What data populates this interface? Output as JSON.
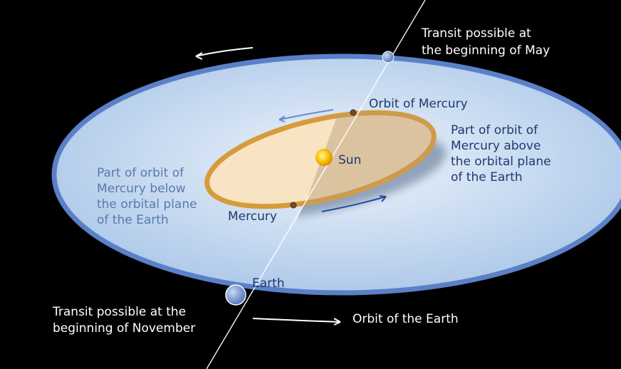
{
  "labels": {
    "transit_may": [
      "Transit possible at",
      "the beginning of May"
    ],
    "orbit_mercury": "Orbit of Mercury",
    "part_above": [
      "Part of orbit of",
      "Mercury above",
      "the orbital plane",
      "of the Earth"
    ],
    "sun": "Sun",
    "part_below": [
      "Part of orbit of",
      "Mercury below",
      "the orbital plane",
      "of the Earth"
    ],
    "mercury": "Mercury",
    "earth": "Earth",
    "transit_november": [
      "Transit possible at the",
      "beginning of November"
    ],
    "orbit_earth": "Orbit of the Earth"
  }
}
